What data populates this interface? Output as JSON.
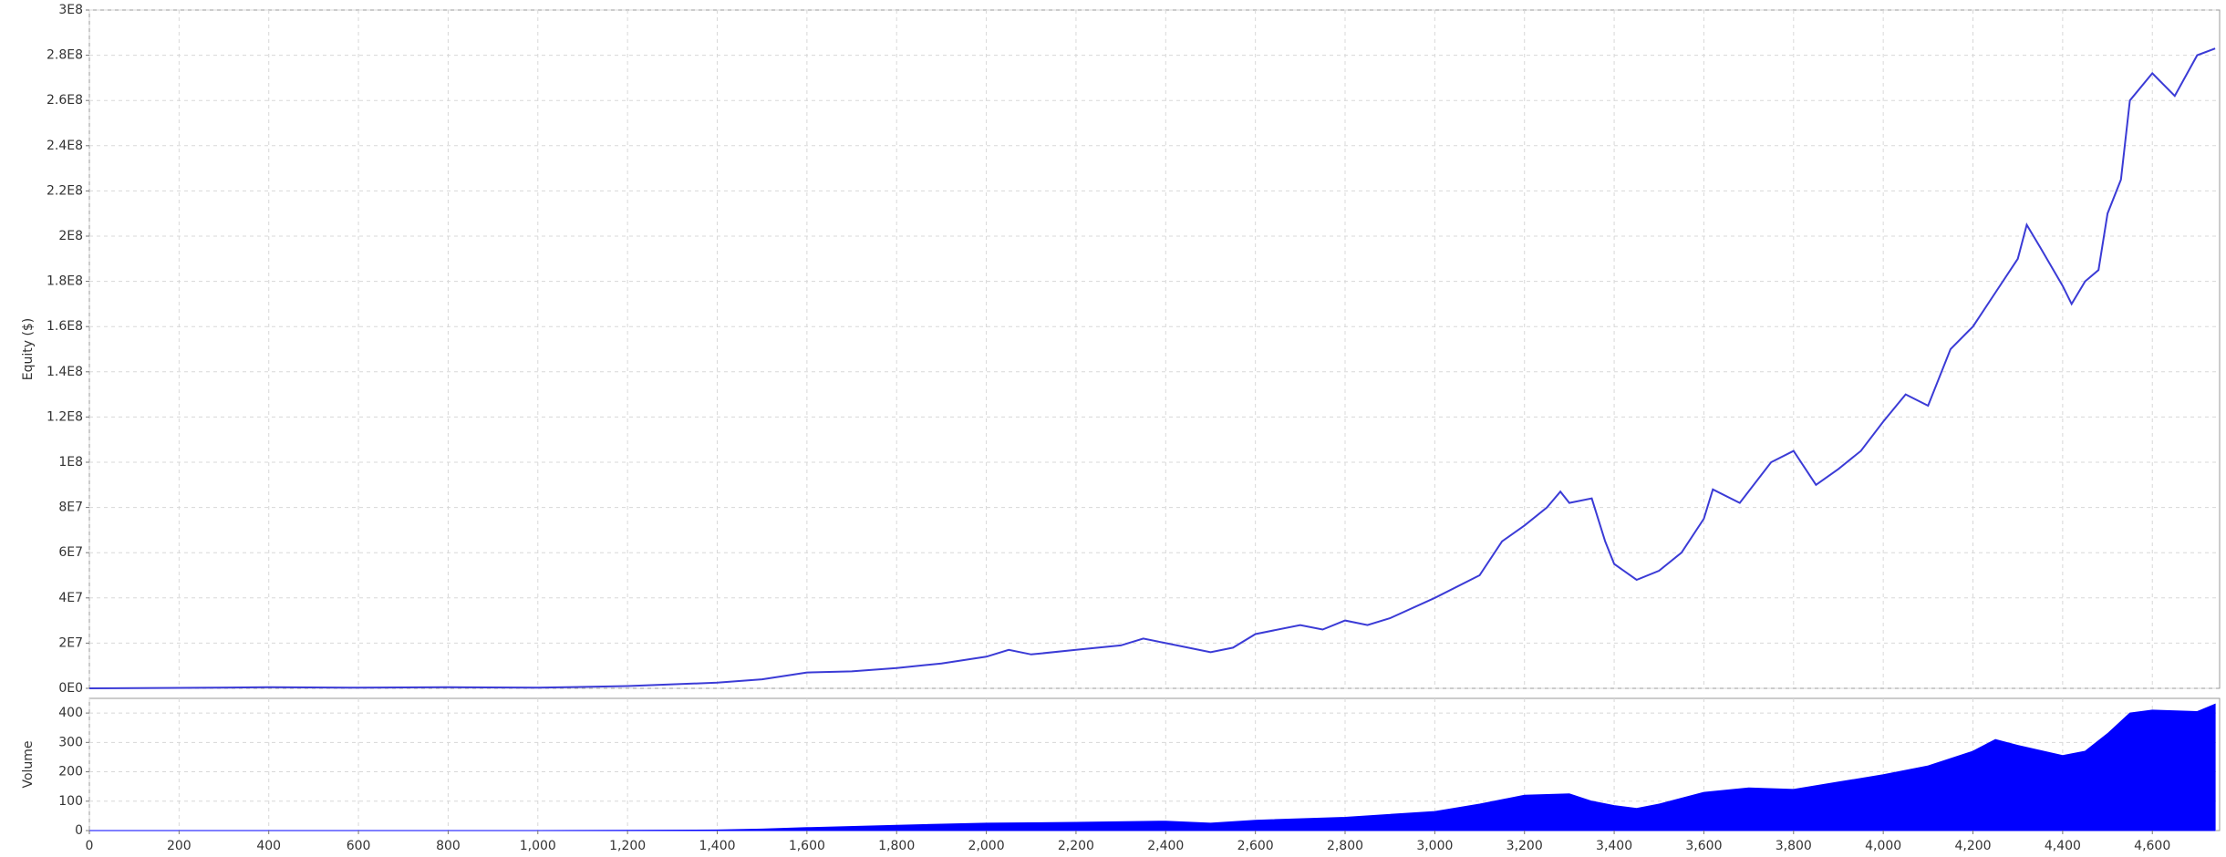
{
  "chart_data": [
    {
      "type": "line",
      "ylabel": "Equity ($)",
      "color": "#3b3bd6",
      "grid": true,
      "xlim": [
        0,
        4750
      ],
      "ylim": [
        0,
        300000000
      ],
      "yticks": [
        {
          "value": 0,
          "label": "0E0"
        },
        {
          "value": 20000000,
          "label": "2E7"
        },
        {
          "value": 40000000,
          "label": "4E7"
        },
        {
          "value": 60000000,
          "label": "6E7"
        },
        {
          "value": 80000000,
          "label": "8E7"
        },
        {
          "value": 100000000,
          "label": "1E8"
        },
        {
          "value": 120000000,
          "label": "1.2E8"
        },
        {
          "value": 140000000,
          "label": "1.4E8"
        },
        {
          "value": 160000000,
          "label": "1.6E8"
        },
        {
          "value": 180000000,
          "label": "1.8E8"
        },
        {
          "value": 200000000,
          "label": "2E8"
        },
        {
          "value": 220000000,
          "label": "2.2E8"
        },
        {
          "value": 240000000,
          "label": "2.4E8"
        },
        {
          "value": 260000000,
          "label": "2.6E8"
        },
        {
          "value": 280000000,
          "label": "2.8E8"
        },
        {
          "value": 300000000,
          "label": "3E8"
        }
      ],
      "x": [
        0,
        200,
        400,
        600,
        800,
        1000,
        1200,
        1400,
        1500,
        1600,
        1700,
        1800,
        1900,
        2000,
        2050,
        2100,
        2200,
        2300,
        2350,
        2400,
        2500,
        2550,
        2600,
        2700,
        2750,
        2800,
        2850,
        2900,
        3000,
        3100,
        3150,
        3200,
        3250,
        3280,
        3300,
        3350,
        3380,
        3400,
        3450,
        3500,
        3550,
        3600,
        3620,
        3680,
        3750,
        3800,
        3850,
        3900,
        3950,
        4000,
        4050,
        4100,
        4150,
        4200,
        4250,
        4300,
        4320,
        4350,
        4400,
        4420,
        4450,
        4480,
        4500,
        4530,
        4550,
        4600,
        4650,
        4700,
        4740
      ],
      "values": [
        0,
        200000,
        500000,
        300000,
        500000,
        300000,
        1000000,
        2500000,
        4000000,
        7000000,
        7500000,
        9000000,
        11000000,
        14000000,
        17000000,
        15000000,
        17000000,
        19000000,
        22000000,
        20000000,
        16000000,
        18000000,
        24000000,
        28000000,
        26000000,
        30000000,
        28000000,
        31000000,
        40000000,
        50000000,
        65000000,
        72000000,
        80000000,
        87000000,
        82000000,
        84000000,
        65000000,
        55000000,
        48000000,
        52000000,
        60000000,
        75000000,
        88000000,
        82000000,
        100000000,
        105000000,
        90000000,
        97000000,
        105000000,
        118000000,
        130000000,
        125000000,
        150000000,
        160000000,
        175000000,
        190000000,
        205000000,
        195000000,
        178000000,
        170000000,
        180000000,
        185000000,
        210000000,
        225000000,
        260000000,
        272000000,
        262000000,
        280000000,
        283000000
      ]
    },
    {
      "type": "area",
      "ylabel": "Volume",
      "color": "#0000ff",
      "grid": true,
      "xlim": [
        0,
        4750
      ],
      "ylim": [
        0,
        450
      ],
      "yticks": [
        0,
        100,
        200,
        300,
        400
      ],
      "xticks": [
        0,
        200,
        400,
        600,
        800,
        {
          "value": 1000,
          "label": "1,000"
        },
        {
          "value": 1200,
          "label": "1,200"
        },
        {
          "value": 1400,
          "label": "1,400"
        },
        {
          "value": 1600,
          "label": "1,600"
        },
        {
          "value": 1800,
          "label": "1,800"
        },
        {
          "value": 2000,
          "label": "2,000"
        },
        {
          "value": 2200,
          "label": "2,200"
        },
        {
          "value": 2400,
          "label": "2,400"
        },
        {
          "value": 2600,
          "label": "2,600"
        },
        {
          "value": 2800,
          "label": "2,800"
        },
        {
          "value": 3000,
          "label": "3,000"
        },
        {
          "value": 3200,
          "label": "3,200"
        },
        {
          "value": 3400,
          "label": "3,400"
        },
        {
          "value": 3600,
          "label": "3,600"
        },
        {
          "value": 3800,
          "label": "3,800"
        },
        {
          "value": 4000,
          "label": "4,000"
        },
        {
          "value": 4200,
          "label": "4,200"
        },
        {
          "value": 4400,
          "label": "4,400"
        },
        {
          "value": 4600,
          "label": "4,600"
        }
      ],
      "x": [
        0,
        200,
        400,
        600,
        800,
        1000,
        1200,
        1400,
        1500,
        1600,
        1800,
        2000,
        2200,
        2400,
        2500,
        2600,
        2800,
        3000,
        3100,
        3200,
        3300,
        3350,
        3400,
        3450,
        3500,
        3600,
        3700,
        3800,
        3900,
        4000,
        4100,
        4200,
        4250,
        4300,
        4400,
        4450,
        4500,
        4550,
        4600,
        4700,
        4740
      ],
      "values": [
        0,
        0,
        0,
        0,
        0,
        0,
        1,
        2,
        5,
        10,
        18,
        25,
        28,
        32,
        25,
        35,
        45,
        65,
        90,
        120,
        125,
        100,
        85,
        75,
        90,
        130,
        145,
        140,
        165,
        190,
        220,
        270,
        310,
        290,
        255,
        270,
        330,
        400,
        410,
        405,
        430
      ]
    }
  ]
}
